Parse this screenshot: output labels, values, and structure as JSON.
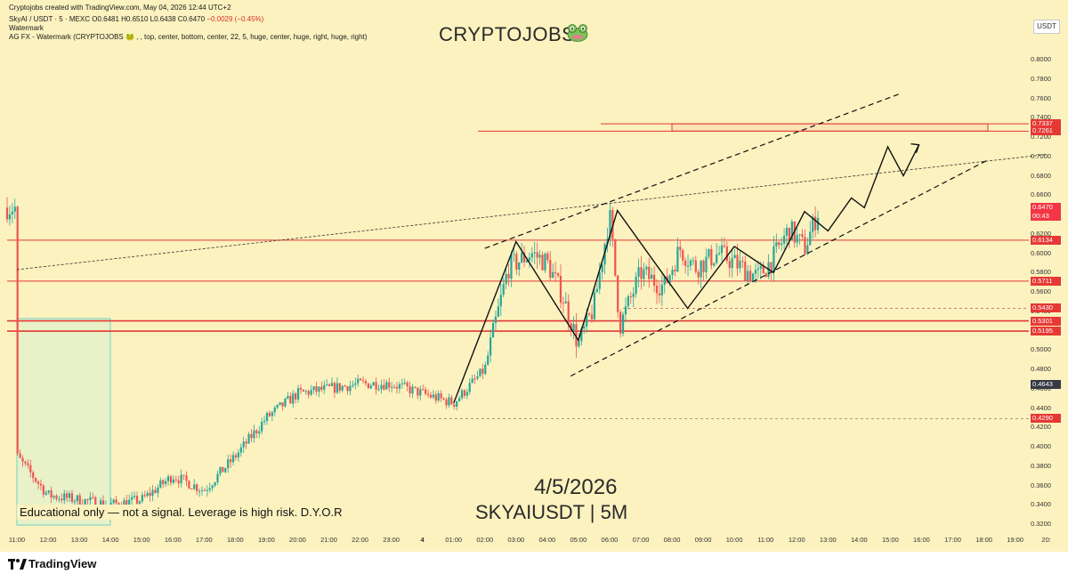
{
  "header": {
    "created_by": "Cryptojobs created with TradingView.com, May 04, 2026 12:44 UTC+2",
    "symbol": "SkyAI / USDT · 5 · MEXC",
    "open": "O0.6481",
    "high": "H0.6510",
    "low": "L0.6438",
    "close": "C0.6470",
    "change": "−0.0029 (−0.45%)",
    "watermark_label": "Watermark",
    "indicator_line": "AG FX - Watermark (CRYPTOJOBS 🐸 , , top, center, bottom, center, 22, 5, huge, center, huge, right, huge, right)"
  },
  "watermark": {
    "title": "CRYPTOJOBS",
    "icon": "frog-icon"
  },
  "overlay": {
    "date": "4/5/2026",
    "pair": "SKYAIUSDT | 5M",
    "disclaimer": "Educational only — not a signal. Leverage is high risk. D.Y.O.R"
  },
  "axis": {
    "currency": "USDT",
    "y_ticks": [
      "0.8000",
      "0.7800",
      "0.7600",
      "0.7400",
      "0.7200",
      "0.7000",
      "0.6800",
      "0.6600",
      "0.6400",
      "0.6200",
      "0.6000",
      "0.5800",
      "0.5600",
      "0.5400",
      "0.5200",
      "0.5000",
      "0.4800",
      "0.4600",
      "0.4400",
      "0.4200",
      "0.4000",
      "0.3800",
      "0.3600",
      "0.3400",
      "0.3200"
    ],
    "x_ticks": [
      "11:00",
      "12:00",
      "13:00",
      "14:00",
      "15:00",
      "16:00",
      "17:00",
      "18:00",
      "19:00",
      "20:00",
      "21:00",
      "22:00",
      "23:00",
      "4",
      "01:00",
      "02:00",
      "03:00",
      "04:00",
      "05:00",
      "06:00",
      "07:00",
      "08:00",
      "09:00",
      "10:00",
      "11:00",
      "12:00",
      "13:00",
      "14:00",
      "15:00",
      "16:00",
      "17:00",
      "18:00",
      "19:00",
      "20:"
    ]
  },
  "price_tags": [
    {
      "value": "0.7337",
      "color": "#e53935"
    },
    {
      "value": "0.7261",
      "color": "#e53935"
    },
    {
      "value": "0.6470",
      "sub": "00:43",
      "color": "#f23645"
    },
    {
      "value": "0.6134",
      "color": "#e53935"
    },
    {
      "value": "0.5711",
      "color": "#e53935"
    },
    {
      "value": "0.5430",
      "color": "#e53935"
    },
    {
      "value": "0.5301",
      "color": "#e53935"
    },
    {
      "value": "0.5195",
      "color": "#e53935"
    },
    {
      "value": "0.4643",
      "color": "#363a45"
    },
    {
      "value": "0.4290",
      "color": "#e53935"
    }
  ],
  "footer": {
    "brand": "TradingView"
  },
  "chart_data": {
    "type": "candlestick",
    "symbol": "SkyAI / USDT",
    "interval": "5",
    "exchange": "MEXC",
    "ylim": [
      0.32,
      0.81
    ],
    "grid": false,
    "last_price": 0.647,
    "horizontal_levels": [
      0.7337,
      0.7261,
      0.6134,
      0.5711,
      0.543,
      0.5301,
      0.5195,
      0.429
    ],
    "price_path": [
      [
        "2026-05-03 11:00",
        0.39
      ],
      [
        "2026-05-03 11:30",
        0.37
      ],
      [
        "2026-05-03 12:00",
        0.35
      ],
      [
        "2026-05-03 13:00",
        0.345
      ],
      [
        "2026-05-03 14:00",
        0.34
      ],
      [
        "2026-05-03 15:00",
        0.345
      ],
      [
        "2026-05-03 16:00",
        0.37
      ],
      [
        "2026-05-03 17:00",
        0.355
      ],
      [
        "2026-05-03 18:00",
        0.39
      ],
      [
        "2026-05-03 19:00",
        0.43
      ],
      [
        "2026-05-03 20:00",
        0.455
      ],
      [
        "2026-05-03 21:00",
        0.46
      ],
      [
        "2026-05-03 22:00",
        0.465
      ],
      [
        "2026-05-03 23:00",
        0.465
      ],
      [
        "2026-05-04 00:30",
        0.45
      ],
      [
        "2026-05-04 01:00",
        0.445
      ],
      [
        "2026-05-04 02:00",
        0.48
      ],
      [
        "2026-05-04 02:45",
        0.585
      ],
      [
        "2026-05-04 03:30",
        0.6
      ],
      [
        "2026-05-04 04:00",
        0.59
      ],
      [
        "2026-05-04 04:30",
        0.555
      ],
      [
        "2026-05-04 05:00",
        0.505
      ],
      [
        "2026-05-04 05:30",
        0.545
      ],
      [
        "2026-05-04 06:00",
        0.64
      ],
      [
        "2026-05-04 06:20",
        0.525
      ],
      [
        "2026-05-04 07:00",
        0.58
      ],
      [
        "2026-05-04 07:45",
        0.565
      ],
      [
        "2026-05-04 08:15",
        0.605
      ],
      [
        "2026-05-04 08:45",
        0.585
      ],
      [
        "2026-05-04 09:30",
        0.6
      ],
      [
        "2026-05-04 10:15",
        0.585
      ],
      [
        "2026-05-04 10:45",
        0.575
      ],
      [
        "2026-05-04 11:15",
        0.595
      ],
      [
        "2026-05-04 11:45",
        0.625
      ],
      [
        "2026-05-04 12:15",
        0.605
      ],
      [
        "2026-05-04 12:44",
        0.647
      ]
    ],
    "annotations": {
      "ascending_channel_upper": [
        [
          "2026-05-04 02:00",
          0.605
        ],
        [
          "2026-05-04 15:20",
          0.765
        ]
      ],
      "ascending_channel_lower": [
        [
          "2026-05-04 04:45",
          0.473
        ],
        [
          "2026-05-04 18:10",
          0.697
        ]
      ],
      "long_trendline": [
        [
          "2026-05-03 11:00",
          0.583
        ],
        [
          "2026-05-04 20:00",
          0.702
        ]
      ],
      "projected_path": [
        [
          "2026-05-04 01:00",
          0.445
        ],
        [
          "2026-05-04 03:00",
          0.612
        ],
        [
          "2026-05-04 05:00",
          0.51
        ],
        [
          "2026-05-04 06:15",
          0.644
        ],
        [
          "2026-05-04 08:30",
          0.543
        ],
        [
          "2026-05-04 10:00",
          0.607
        ],
        [
          "2026-05-04 11:15",
          0.58
        ],
        [
          "2026-05-04 12:15",
          0.643
        ],
        [
          "2026-05-04 13:00",
          0.623
        ],
        [
          "2026-05-04 13:45",
          0.657
        ],
        [
          "2026-05-04 14:10",
          0.647
        ],
        [
          "2026-05-04 14:55",
          0.71
        ],
        [
          "2026-05-04 15:25",
          0.68
        ],
        [
          "2026-05-04 15:55",
          0.712
        ]
      ],
      "resistance_zone": [
        0.7261,
        0.7337
      ]
    }
  }
}
